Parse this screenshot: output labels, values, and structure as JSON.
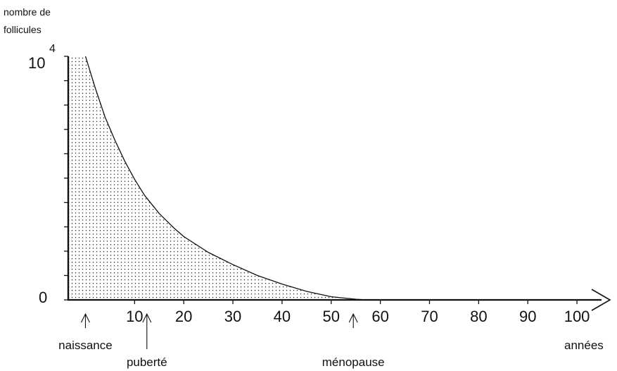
{
  "chart_data": {
    "type": "area",
    "ylabel_lines": [
      "nombre de",
      "follicules"
    ],
    "xlabel": "années",
    "y_tick_labels": [
      {
        "value": 0,
        "base": "0",
        "exp": ""
      },
      {
        "value": 10000,
        "base": "10",
        "exp": "4"
      }
    ],
    "y_minor_ticks": 11,
    "x_ticks": [
      10,
      20,
      30,
      40,
      50,
      60,
      70,
      80,
      90,
      100
    ],
    "xlim": [
      -3.5,
      105
    ],
    "ylim": [
      0,
      10000
    ],
    "x": [
      0.0,
      2.0,
      4.0,
      6.0,
      8.0,
      10.0,
      12.0,
      15.0,
      18.0,
      20.0,
      25.0,
      30.0,
      35.0,
      40.0,
      45.0,
      50.0,
      55.0,
      57.0
    ],
    "y": [
      10000,
      8700,
      7500,
      6550,
      5700,
      4950,
      4300,
      3550,
      2950,
      2600,
      1950,
      1450,
      1000,
      650,
      350,
      130,
      30,
      0
    ],
    "fill_pattern": "dotted",
    "annotations": [
      {
        "x": 0,
        "text": "naissance"
      },
      {
        "x": 12.5,
        "text": "puberté"
      },
      {
        "x": 54.5,
        "text": "ménopause"
      }
    ]
  }
}
